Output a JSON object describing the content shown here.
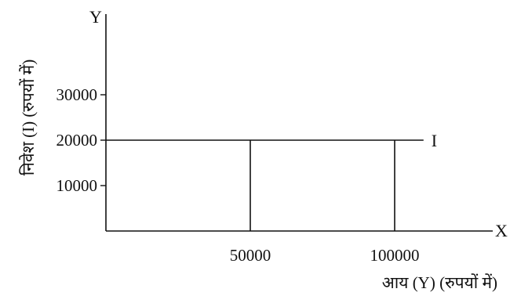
{
  "chart_data": {
    "type": "line",
    "title": "",
    "xlabel": "आय (Y) (रुपयों में)",
    "ylabel": "निवेश (I) (रुपयों में)",
    "x_axis_letter": "X",
    "y_axis_letter": "Y",
    "xlim": [
      0,
      126000
    ],
    "ylim": [
      0,
      40500
    ],
    "x_ticks": [
      50000,
      100000
    ],
    "y_ticks": [
      10000,
      20000,
      30000
    ],
    "series": [
      {
        "name": "I",
        "x": [
          0,
          110000
        ],
        "y": [
          20000,
          20000
        ]
      }
    ],
    "verticals": [
      {
        "x": 50000,
        "y": 20000
      },
      {
        "x": 100000,
        "y": 20000
      }
    ],
    "grid": false
  }
}
